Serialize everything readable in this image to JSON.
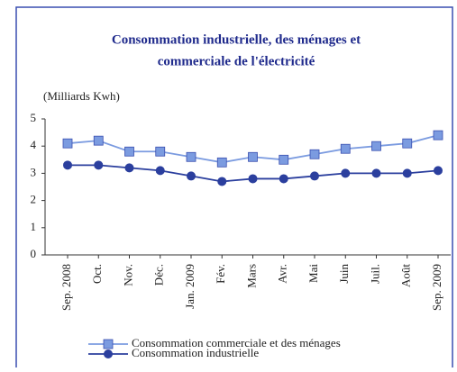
{
  "chart_data": {
    "type": "line",
    "title_lines": [
      "Consommation industrielle, des ménages et",
      "commerciale de l'électricité"
    ],
    "ylabel": "(Milliards Kwh)",
    "categories": [
      "Sep. 2008",
      "Oct.",
      "Nov.",
      "Déc.",
      "Jan. 2009",
      "Fév.",
      "Mars",
      "Avr.",
      "Mai",
      "Juin",
      "Juil.",
      "Août",
      "Sep. 2009"
    ],
    "series": [
      {
        "name": "Consommation commerciale et des ménages",
        "color": "#7b9be0",
        "marker": "square",
        "values": [
          4.1,
          4.2,
          3.8,
          3.8,
          3.6,
          3.4,
          3.6,
          3.5,
          3.7,
          3.9,
          4.0,
          4.1,
          4.4
        ]
      },
      {
        "name": "Consommation industrielle",
        "color": "#2b3f9e",
        "marker": "circle",
        "values": [
          3.3,
          3.3,
          3.2,
          3.1,
          2.9,
          2.7,
          2.8,
          2.8,
          2.9,
          3.0,
          3.0,
          3.0,
          3.1
        ]
      }
    ],
    "ylim": [
      0,
      5
    ],
    "yticks": [
      0,
      1,
      2,
      3,
      4,
      5
    ]
  }
}
